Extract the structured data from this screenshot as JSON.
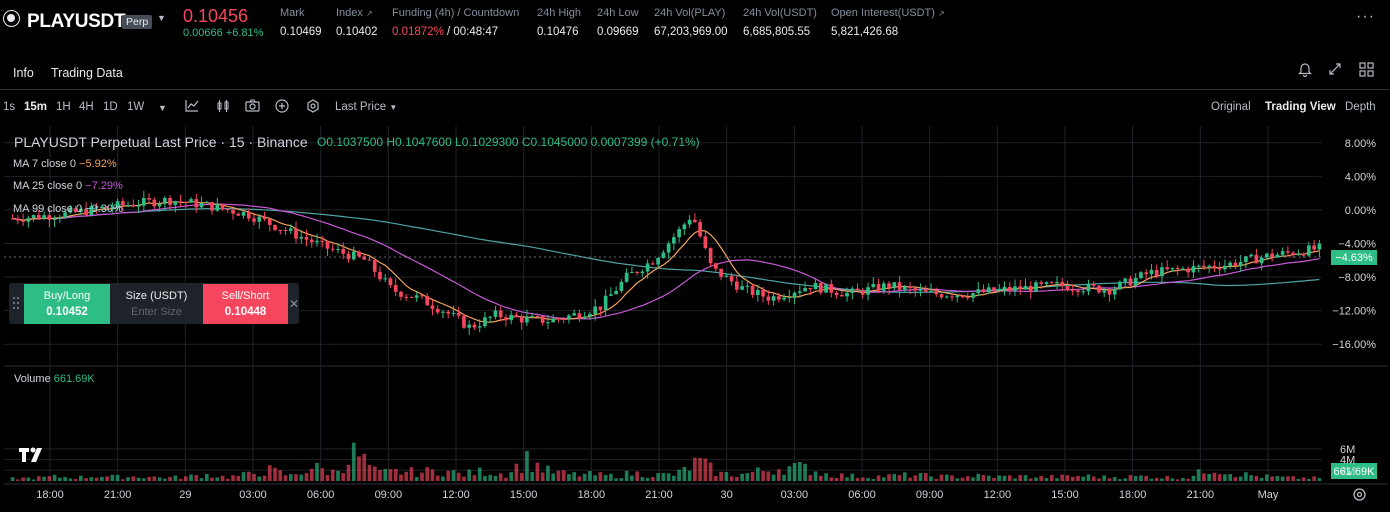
{
  "header": {
    "symbol": "PLAYUSDT",
    "contract_badge": "Perp",
    "last_price": "0.10456",
    "price_change": "0.00666 +6.81%",
    "stats": [
      {
        "label": "Mark",
        "value": "0.10469",
        "icon": ""
      },
      {
        "label": "Index",
        "value": "0.10402",
        "icon": "↗"
      },
      {
        "label": "Funding (4h) / Countdown",
        "value": "0.01872%",
        "value2": " / 00:48:47",
        "icon": ""
      },
      {
        "label": "24h High",
        "value": "0.10476",
        "icon": ""
      },
      {
        "label": "24h Low",
        "value": "0.09669",
        "icon": ""
      },
      {
        "label": "24h Vol(PLAY)",
        "value": "67,203,969.00",
        "icon": ""
      },
      {
        "label": "24h Vol(USDT)",
        "value": "6,685,805.55",
        "icon": ""
      },
      {
        "label": "Open Interest(USDT)",
        "value": "5,821,426.68",
        "icon": "↗"
      }
    ],
    "colors": {
      "up": "#2ebd85",
      "down": "#f6465d",
      "bg": "#000000"
    }
  },
  "tabs": {
    "info": "Info",
    "trading_data": "Trading Data"
  },
  "toolbar": {
    "intervals": [
      "1s",
      "15m",
      "1H",
      "4H",
      "1D",
      "1W"
    ],
    "active_interval": "15m",
    "price_type": "Last Price",
    "views": [
      "Original",
      "Trading View",
      "Depth"
    ],
    "active_view": "Trading View"
  },
  "chart": {
    "legend_title": "PLAYUSDT Perpetual Last Price · 15 · Binance",
    "ohlc": "O0.1037500 H0.1047600 L0.1029300 C0.1045000 0.0007399 (+0.71%)",
    "ma": [
      {
        "label": "MA 7 close 0",
        "value": "−5.92%",
        "color": "#f0a35b"
      },
      {
        "label": "MA 25 close 0",
        "value": "−7.29%",
        "color": "#c957d6"
      },
      {
        "label": "MA 99 close 0",
        "value": "−9.30%",
        "color": "#8fe3e3"
      }
    ],
    "volume_label": "Volume",
    "volume_value": "661.69K",
    "current_pct_label": "−4.63%",
    "volume_badge": "661.69K"
  },
  "order_widget": {
    "buy_label": "Buy/Long",
    "buy_price": "0.10452",
    "size_label": "Size (USDT)",
    "size_placeholder": "Enter Size",
    "sell_label": "Sell/Short",
    "sell_price": "0.10448"
  },
  "chart_data": {
    "type": "candlestick",
    "y_axis_ticks": [
      "8.00%",
      "4.00%",
      "0.00%",
      "−4.00%",
      "−8.00%",
      "−12.00%",
      "−16.00%"
    ],
    "volume_axis_ticks": [
      "6M",
      "4M",
      "2M"
    ],
    "x_axis_ticks": [
      "18:00",
      "21:00",
      "29",
      "03:00",
      "06:00",
      "09:00",
      "12:00",
      "15:00",
      "18:00",
      "21:00",
      "30",
      "03:00",
      "06:00",
      "09:00",
      "12:00",
      "15:00",
      "18:00",
      "21:00",
      "May"
    ],
    "ylim_pct": [
      -18,
      10
    ],
    "price_path_pct": [
      [
        0,
        -1.0
      ],
      [
        0.04,
        -0.5
      ],
      [
        0.08,
        0.5
      ],
      [
        0.12,
        1.2
      ],
      [
        0.15,
        0.5
      ],
      [
        0.18,
        -0.5
      ],
      [
        0.21,
        -2.5
      ],
      [
        0.24,
        -4.5
      ],
      [
        0.27,
        -6.0
      ],
      [
        0.29,
        -9.5
      ],
      [
        0.31,
        -10.5
      ],
      [
        0.33,
        -12.0
      ],
      [
        0.35,
        -14.0
      ],
      [
        0.37,
        -12.5
      ],
      [
        0.39,
        -13.0
      ],
      [
        0.41,
        -13.2
      ],
      [
        0.43,
        -12.5
      ],
      [
        0.45,
        -11.5
      ],
      [
        0.47,
        -8.0
      ],
      [
        0.49,
        -6.0
      ],
      [
        0.51,
        -2.5
      ],
      [
        0.52,
        -0.5
      ],
      [
        0.535,
        -7.0
      ],
      [
        0.56,
        -9.5
      ],
      [
        0.58,
        -10.5
      ],
      [
        0.61,
        -9.0
      ],
      [
        0.64,
        -10.0
      ],
      [
        0.67,
        -9.0
      ],
      [
        0.7,
        -10.0
      ],
      [
        0.73,
        -10.0
      ],
      [
        0.76,
        -9.5
      ],
      [
        0.8,
        -9.0
      ],
      [
        0.84,
        -9.5
      ],
      [
        0.87,
        -7.5
      ],
      [
        0.9,
        -7.0
      ],
      [
        0.93,
        -6.5
      ],
      [
        0.96,
        -5.5
      ],
      [
        1.0,
        -4.6
      ]
    ],
    "volume_profile_m": [
      0.6,
      0.7,
      1.0,
      0.8,
      1.2,
      0.9,
      1.1,
      0.8,
      0.9,
      1.5,
      0.9,
      1.5,
      2.5,
      1.2,
      3.2,
      2.0,
      6.7,
      1.8,
      2.2,
      2.0,
      2.5,
      1.5,
      2.3,
      1.6,
      4.9,
      2.3,
      1.5,
      1.5,
      1.2,
      1.8,
      1.4,
      1.5,
      4.5,
      1.7,
      1.5,
      2.4,
      3.2,
      3.0,
      1.6,
      1.2,
      1.0,
      1.2,
      1.4,
      1.1,
      1.0,
      1.2,
      1.0,
      1.1,
      0.9,
      1.0,
      1.2,
      0.9,
      1.0,
      1.1,
      0.8,
      0.9,
      3.3,
      1.8,
      1.2,
      0.9,
      0.7,
      0.7
    ]
  }
}
